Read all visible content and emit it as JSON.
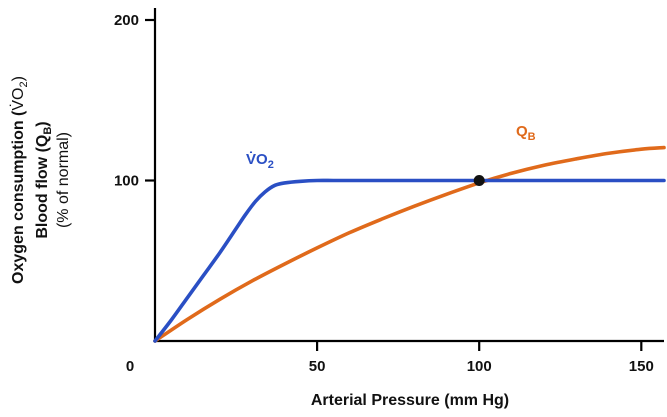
{
  "chart_data": {
    "type": "line",
    "xlabel": "Arterial Pressure (mm Hg)",
    "ylabel_lines": [
      {
        "main": "Oxygen consumption (",
        "symbol": "V̇O",
        "sub": "2",
        "close": ")"
      },
      {
        "main": "Blood flow (Q",
        "sub": "B",
        "close": ")"
      },
      {
        "main": "(% of normal)"
      }
    ],
    "xlim": [
      0,
      157
    ],
    "ylim": [
      0,
      200
    ],
    "x_ticks": [
      {
        "value": 0,
        "label": "0"
      },
      {
        "value": 50,
        "label": "50"
      },
      {
        "value": 100,
        "label": "100"
      },
      {
        "value": 150,
        "label": "150"
      }
    ],
    "y_ticks": [
      {
        "value": 100,
        "label": "100"
      },
      {
        "value": 200,
        "label": "200"
      }
    ],
    "grid": false,
    "series": [
      {
        "name": "V̇O₂",
        "label_main": "V̇O",
        "label_sub": "2",
        "color": "#2a4fc4",
        "x": [
          0,
          5,
          10,
          15,
          20,
          25,
          28,
          31,
          34,
          37,
          40,
          45,
          50,
          55,
          60,
          70,
          80,
          90,
          100,
          110,
          120,
          130,
          140,
          150,
          157
        ],
        "y": [
          0,
          13,
          27,
          41,
          55,
          70,
          79,
          87,
          93,
          97,
          98.5,
          99.5,
          100,
          100,
          100,
          100,
          100,
          100,
          100,
          100,
          100,
          100,
          100,
          100,
          100
        ]
      },
      {
        "name": "QB",
        "label_main": "Q",
        "label_sub": "B",
        "color": "#e06a1b",
        "x": [
          0,
          10,
          20,
          30,
          40,
          50,
          60,
          70,
          80,
          90,
          100,
          110,
          120,
          130,
          140,
          150,
          157
        ],
        "y": [
          0,
          13.5,
          26,
          37.5,
          48,
          58,
          67.5,
          76,
          84,
          91.5,
          98.5,
          104.5,
          109.5,
          113.5,
          117,
          119.5,
          120.5
        ]
      }
    ],
    "highlight_point": {
      "x": 100,
      "y": 100
    }
  }
}
